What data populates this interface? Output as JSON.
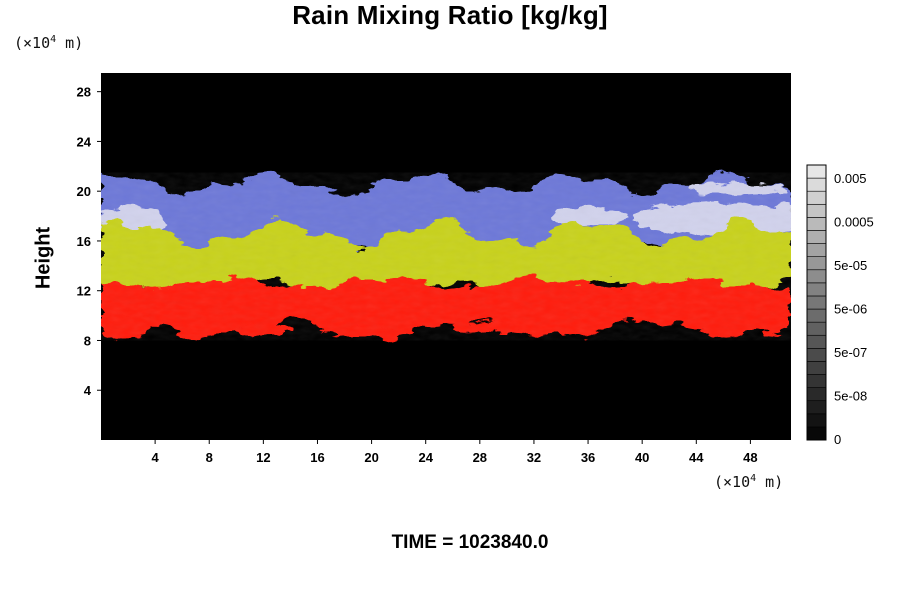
{
  "chart_data": {
    "type": "heatmap",
    "title": "Rain Mixing Ratio [kg/kg]",
    "ylabel": "Height",
    "y_unit": "(×10",
    "y_unit_exp": "4",
    "y_unit_tail": " m)",
    "x_unit": "(×10",
    "x_unit_exp": "4",
    "x_unit_tail": " m)",
    "xlim": [
      0,
      51
    ],
    "ylim": [
      0,
      29.5
    ],
    "x_ticks": [
      4,
      8,
      12,
      16,
      20,
      24,
      28,
      32,
      36,
      40,
      44,
      48
    ],
    "y_ticks": [
      4,
      8,
      12,
      16,
      20,
      24,
      28
    ],
    "colorbar": {
      "labels": [
        "0.005",
        "0.0005",
        "5e-05",
        "5e-06",
        "5e-07",
        "5e-08",
        "0"
      ],
      "scale": "log"
    },
    "bands": [
      {
        "name": "red",
        "color": "#ff1a10",
        "y_bottom": 8.6,
        "y_top": 12.6
      },
      {
        "name": "yellow",
        "color": "#c8d21e",
        "y_bottom": 12.6,
        "y_top": 16.0
      },
      {
        "name": "blue-white",
        "color": "#9aa2e0",
        "y_bottom": 16.0,
        "y_top": 20.6
      }
    ],
    "grid": false,
    "annotation": "TIME = 1023840.0"
  },
  "colors": {
    "background": "#000000",
    "red": "#ff1a10",
    "yellow": "#c8d21e",
    "blue": "#6d78d8",
    "white": "#dcdcef"
  }
}
